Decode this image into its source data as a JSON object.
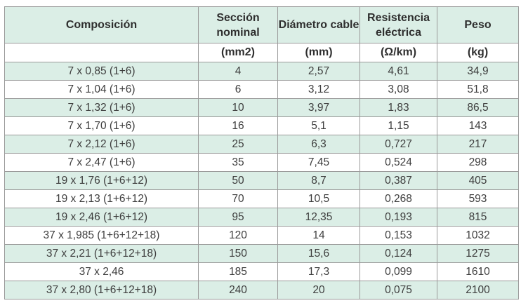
{
  "table": {
    "headers": [
      "Composición",
      "Sección nominal",
      "Diámetro cable",
      "Resistencia eléctrica",
      "Peso"
    ],
    "units": [
      "",
      "(mm2)",
      "(mm)",
      "(Ω/km)",
      "(kg)"
    ],
    "rows": [
      [
        "7 x 0,85 (1+6)",
        "4",
        "2,57",
        "4,61",
        "34,9"
      ],
      [
        "7 x 1,04 (1+6)",
        "6",
        "3,12",
        "3,08",
        "51,8"
      ],
      [
        "7 x 1,32 (1+6)",
        "10",
        "3,97",
        "1,83",
        "86,5"
      ],
      [
        "7 x 1,70 (1+6)",
        "16",
        "5,1",
        "1,15",
        "143"
      ],
      [
        "7 x 2,12 (1+6)",
        "25",
        "6,3",
        "0,727",
        "217"
      ],
      [
        "7 x 2,47 (1+6)",
        "35",
        "7,45",
        "0,524",
        "298"
      ],
      [
        "19 x 1,76 (1+6+12)",
        "50",
        "8,7",
        "0,387",
        "405"
      ],
      [
        "19 x 2,13 (1+6+12)",
        "70",
        "10,5",
        "0,268",
        "593"
      ],
      [
        "19 x 2,46 (1+6+12)",
        "95",
        "12,35",
        "0,193",
        "815"
      ],
      [
        "37 x 1,985 (1+6+12+18)",
        "120",
        "14",
        "0,153",
        "1032"
      ],
      [
        "37 x 2,21 (1+6+12+18)",
        "150",
        "15,6",
        "0,124",
        "1275"
      ],
      [
        "37 x 2,46",
        "185",
        "17,3",
        "0,099",
        "1610"
      ],
      [
        "37 x 2,80 (1+6+12+18)",
        "240",
        "20",
        "0,075",
        "2100"
      ]
    ]
  },
  "colors": {
    "stripe": "#dbeee6",
    "border": "#9a9a9a"
  }
}
